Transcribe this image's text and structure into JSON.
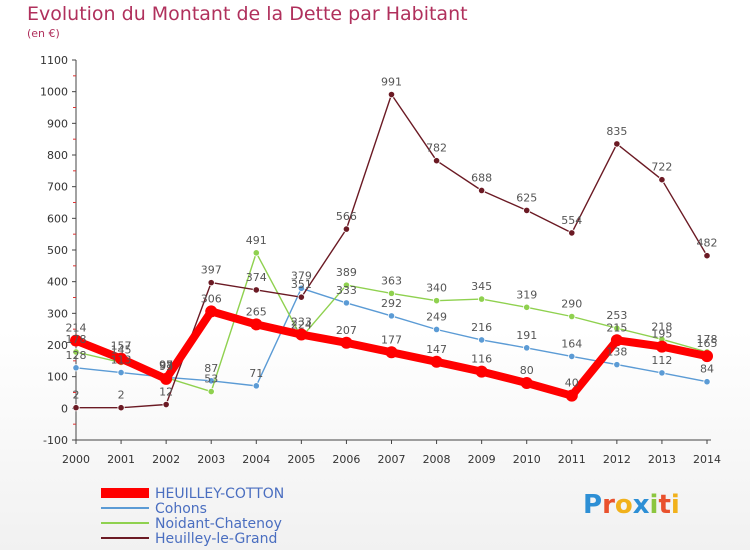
{
  "title": "Evolution du Montant de la Dette par Habitant",
  "unit": "(en €)",
  "logo": "Proxiti",
  "chart_data": {
    "type": "line",
    "title": "Evolution du Montant de la Dette par Habitant",
    "ylabel": "(en €)",
    "ylim": [
      -100,
      1100
    ],
    "yticks": [
      "-100",
      "0",
      "100",
      "200",
      "300",
      "400",
      "500",
      "600",
      "700",
      "800",
      "900",
      "1000",
      "1100"
    ],
    "categories": [
      "2000",
      "2001",
      "2002",
      "2003",
      "2004",
      "2005",
      "2006",
      "2007",
      "2008",
      "2009",
      "2010",
      "2011",
      "2012",
      "2013",
      "2014"
    ],
    "grid": false,
    "legend": "bottom-left",
    "series": [
      {
        "name": "HEUILLEY-COTTON",
        "color": "#ff0000",
        "values": [
          214,
          157,
          93,
          306,
          265,
          233,
          207,
          177,
          147,
          116,
          80,
          40,
          215,
          195,
          165
        ]
      },
      {
        "name": "Cohons",
        "color": "#5b9bd5",
        "values": [
          128,
          113,
          98,
          87,
          71,
          379,
          333,
          292,
          249,
          216,
          191,
          164,
          138,
          112,
          84
        ]
      },
      {
        "name": "Noidant-Chatenoy",
        "color": "#8fd14f",
        "values": [
          178,
          145,
          97,
          53,
          491,
          224,
          389,
          363,
          340,
          345,
          319,
          290,
          253,
          218,
          178
        ]
      },
      {
        "name": "Heuilley-le-Grand",
        "color": "#6b1a24",
        "values": [
          2,
          2,
          12,
          397,
          374,
          351,
          566,
          991,
          782,
          688,
          625,
          554,
          835,
          722,
          482
        ]
      }
    ]
  }
}
